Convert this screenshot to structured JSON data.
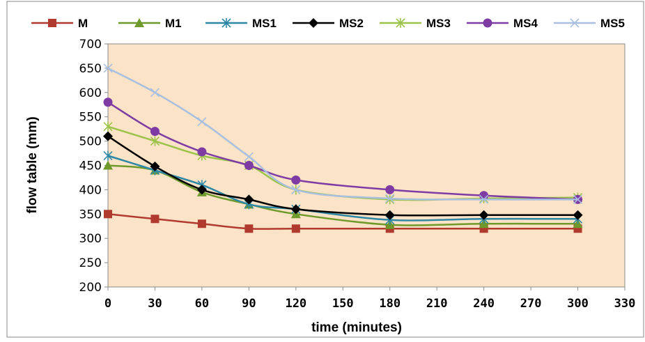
{
  "chart_data": {
    "type": "line",
    "title": "",
    "xlabel": "time (minutes)",
    "ylabel": "flow table (mm)",
    "xlim": [
      0,
      330
    ],
    "ylim": [
      200,
      700
    ],
    "xticks": [
      0,
      30,
      60,
      90,
      120,
      150,
      180,
      210,
      240,
      270,
      300,
      330
    ],
    "yticks": [
      200,
      250,
      300,
      350,
      400,
      450,
      500,
      550,
      600,
      650,
      700
    ],
    "x": [
      0,
      30,
      60,
      90,
      120,
      180,
      240,
      300
    ],
    "grid": false,
    "legend_position": "top",
    "plot_background": "#FBE3C7",
    "series": [
      {
        "name": "M",
        "color": "#B03A2E",
        "marker": "square",
        "values": [
          350,
          340,
          330,
          320,
          320,
          320,
          320,
          320
        ]
      },
      {
        "name": "M1",
        "color": "#6E9A2B",
        "marker": "triangle",
        "values": [
          450,
          440,
          395,
          370,
          350,
          328,
          330,
          330
        ]
      },
      {
        "name": "MS1",
        "color": "#2E87A5",
        "marker": "asterisk",
        "values": [
          470,
          440,
          410,
          370,
          360,
          338,
          340,
          340
        ]
      },
      {
        "name": "MS2",
        "color": "#000000",
        "marker": "diamond",
        "values": [
          510,
          448,
          400,
          380,
          360,
          348,
          348,
          348
        ]
      },
      {
        "name": "MS3",
        "color": "#9BC34A",
        "marker": "asterisk",
        "values": [
          530,
          500,
          470,
          450,
          400,
          380,
          382,
          384
        ]
      },
      {
        "name": "MS4",
        "color": "#7E3BA3",
        "marker": "circle",
        "values": [
          580,
          520,
          478,
          450,
          420,
          400,
          388,
          380
        ]
      },
      {
        "name": "MS5",
        "color": "#A9BFE0",
        "marker": "cross",
        "values": [
          650,
          600,
          540,
          468,
          400,
          382,
          380,
          380
        ]
      }
    ]
  }
}
